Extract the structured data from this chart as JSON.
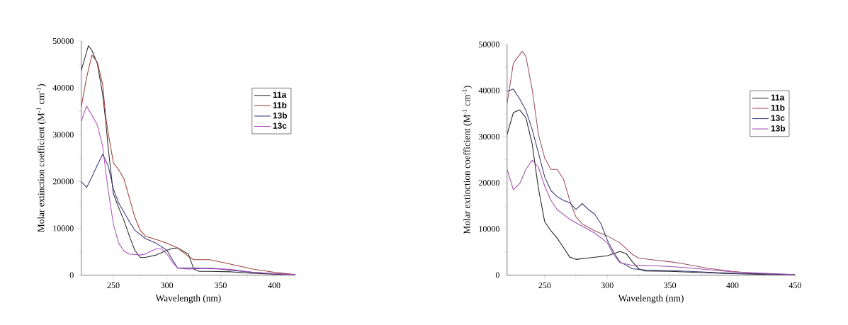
{
  "chart_data": [
    {
      "type": "line",
      "xlabel": "Wavelength (nm)",
      "ylabel": "Molar extinction coefficient (M$^{-1}$ cm$^{-1}$)",
      "xlim": [
        220,
        420
      ],
      "xticks": [
        250,
        300,
        350,
        400
      ],
      "ylim": [
        0,
        50000
      ],
      "yticks": [
        0,
        10000,
        20000,
        30000,
        40000,
        50000
      ],
      "legend": "top right",
      "line_style": "solid",
      "grid": false,
      "series": [
        {
          "name": "11a",
          "color": "#2b2b2b",
          "x": [
            220,
            226.7,
            230,
            235,
            240,
            243,
            245,
            250,
            255,
            260,
            265,
            270,
            275,
            280,
            290,
            300,
            305,
            310,
            320,
            325,
            330,
            340,
            360,
            380,
            400,
            420
          ],
          "values": [
            43700,
            49000,
            48000,
            45200,
            38600,
            32600,
            27500,
            17400,
            14400,
            11600,
            8300,
            5300,
            3800,
            3800,
            4300,
            5300,
            5700,
            5800,
            4500,
            1300,
            800,
            800,
            700,
            400,
            200,
            100
          ]
        },
        {
          "name": "11b",
          "color": "#a0413a",
          "x": [
            220,
            225,
            230,
            235,
            240,
            243,
            245,
            250,
            255,
            260,
            265,
            270,
            275,
            280,
            290,
            300,
            310,
            320,
            325,
            340,
            350,
            360,
            380,
            400,
            420
          ],
          "values": [
            35900,
            42200,
            47000,
            45500,
            40700,
            33600,
            30600,
            24000,
            22500,
            20500,
            16400,
            12400,
            9600,
            8300,
            7600,
            6800,
            5800,
            4000,
            3300,
            3300,
            2800,
            2300,
            1300,
            600,
            100
          ]
        },
        {
          "name": "13b",
          "color": "#3a3a7a",
          "x": [
            220,
            225,
            230,
            235,
            240,
            245,
            250,
            255,
            260,
            265,
            270,
            280,
            290,
            300,
            305,
            310,
            320,
            330,
            350,
            360,
            380,
            400,
            420
          ],
          "values": [
            20000,
            18700,
            21000,
            23500,
            25800,
            23500,
            18400,
            15400,
            13400,
            11400,
            9600,
            7800,
            6800,
            5300,
            3300,
            1500,
            1500,
            1500,
            1300,
            1000,
            600,
            300,
            100
          ]
        },
        {
          "name": "13c",
          "color": "#b050c0",
          "x": [
            220,
            225,
            230,
            235,
            240,
            245,
            250,
            255,
            260,
            265,
            275,
            280,
            285,
            290,
            295,
            300,
            305,
            310,
            320,
            340,
            360,
            380,
            400,
            420
          ],
          "values": [
            32800,
            36100,
            34100,
            32100,
            27500,
            18400,
            10900,
            6800,
            5100,
            4500,
            4300,
            4500,
            5100,
            5600,
            5600,
            4500,
            2800,
            1500,
            1300,
            1500,
            1200,
            600,
            300,
            100
          ]
        }
      ]
    },
    {
      "type": "line",
      "xlabel": "Wavelength (nm)",
      "ylabel": "Molar extinction coefficient (M$^{-1}$ cm$^{-1}$)",
      "xlim": [
        220,
        450
      ],
      "xticks": [
        250,
        300,
        350,
        400,
        450
      ],
      "ylim": [
        0,
        50000
      ],
      "yticks": [
        0,
        10000,
        20000,
        30000,
        40000,
        50000
      ],
      "legend": "top right",
      "line_style": "solid",
      "grid": false,
      "series": [
        {
          "name": "11a",
          "color": "#222222",
          "x": [
            220,
            225,
            230,
            235,
            240,
            245,
            250,
            255,
            260,
            265,
            270,
            275,
            284,
            300,
            310,
            315,
            320,
            325,
            330,
            350,
            400,
            450
          ],
          "values": [
            30500,
            35200,
            35800,
            34100,
            28500,
            18800,
            11600,
            9600,
            8000,
            6000,
            3900,
            3400,
            3700,
            4200,
            5100,
            4700,
            2900,
            1400,
            900,
            800,
            300,
            0
          ]
        },
        {
          "name": "11b",
          "color": "#a05060",
          "x": [
            220,
            225,
            232,
            235,
            240,
            245,
            250,
            255,
            260,
            265,
            270,
            275,
            280,
            290,
            300,
            310,
            320,
            325,
            340,
            350,
            360,
            380,
            400,
            420,
            450
          ],
          "values": [
            37200,
            45900,
            48500,
            47400,
            40300,
            30500,
            25400,
            22900,
            22900,
            20800,
            16200,
            12600,
            11100,
            9600,
            8500,
            7000,
            4500,
            3700,
            3200,
            2900,
            2500,
            1500,
            800,
            300,
            100
          ]
        },
        {
          "name": "13c",
          "color": "#3c3c78",
          "x": [
            220,
            225,
            230,
            235,
            240,
            245,
            250,
            255,
            260,
            265,
            270,
            275,
            280,
            285,
            290,
            295,
            300,
            305,
            310,
            320,
            330,
            350,
            400,
            450
          ],
          "values": [
            39800,
            40300,
            38200,
            35700,
            31600,
            26500,
            21300,
            18300,
            17000,
            16200,
            15700,
            14200,
            15500,
            14200,
            13200,
            11100,
            7600,
            5000,
            2900,
            1400,
            1100,
            1000,
            400,
            100
          ]
        },
        {
          "name": "13b",
          "color": "#a050b0",
          "x": [
            220,
            225,
            230,
            235,
            240,
            245,
            250,
            255,
            260,
            270,
            280,
            290,
            300,
            305,
            310,
            320,
            340,
            360,
            400,
            450
          ],
          "values": [
            22900,
            18500,
            19800,
            22900,
            24900,
            23400,
            19300,
            16200,
            14200,
            12100,
            10600,
            9100,
            7000,
            4500,
            2700,
            2100,
            2000,
            1700,
            700,
            100
          ]
        }
      ]
    }
  ]
}
